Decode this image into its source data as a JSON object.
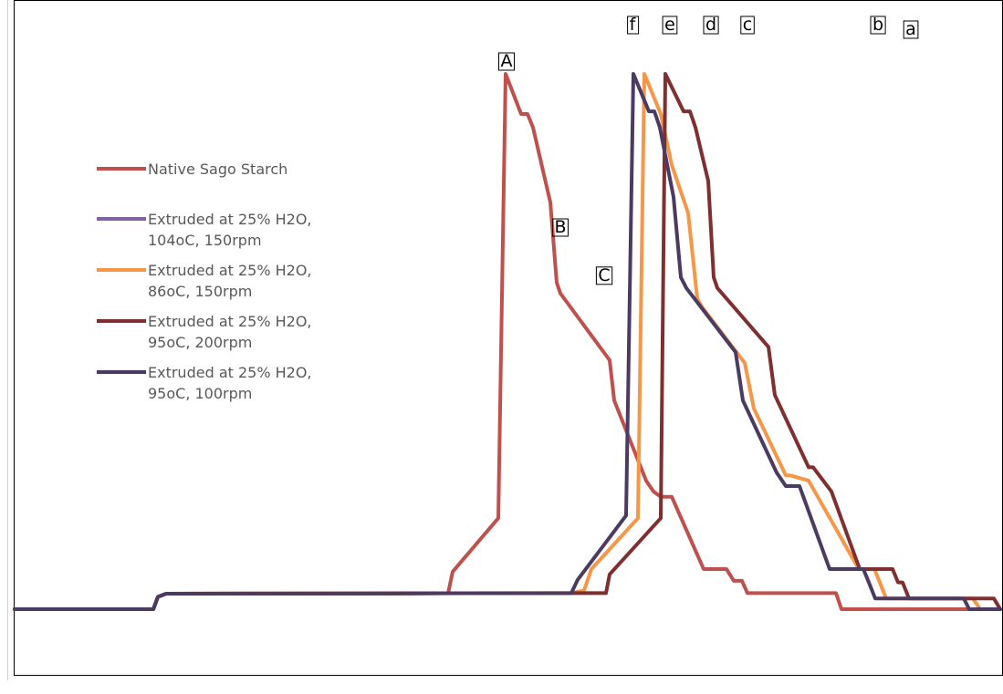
{
  "chart_data": {
    "type": "line",
    "title": "",
    "xlabel": "",
    "ylabel": "",
    "grid": false,
    "legend_position": "left",
    "x_range": [
      0,
      1080
    ],
    "y_range": [
      0,
      100
    ],
    "series": [
      {
        "name": "Native Sago Starch",
        "legend": [
          "Native Sago Starch"
        ],
        "color": "#C0504D",
        "points": [
          [
            0,
            0
          ],
          [
            152,
            0
          ],
          [
            157,
            2.3
          ],
          [
            166,
            2.9
          ],
          [
            420,
            2.9
          ],
          [
            475,
            3
          ],
          [
            480,
            7
          ],
          [
            530,
            17
          ],
          [
            538,
            100
          ],
          [
            555,
            92.5
          ],
          [
            562,
            92.5
          ],
          [
            568,
            90
          ],
          [
            587,
            76
          ],
          [
            594,
            61
          ],
          [
            598,
            59
          ],
          [
            652,
            46.5
          ],
          [
            657,
            39
          ],
          [
            692,
            24
          ],
          [
            700,
            22
          ],
          [
            708,
            21
          ],
          [
            720,
            21
          ],
          [
            755,
            7.5
          ],
          [
            780,
            7.5
          ],
          [
            788,
            5.3
          ],
          [
            797,
            5.3
          ],
          [
            803,
            3
          ],
          [
            900,
            3
          ],
          [
            906,
            0
          ],
          [
            1080,
            0
          ]
        ]
      },
      {
        "name": "Extruded at 25% H2O, 104oC, 150rpm",
        "legend": [
          "Extruded at 25% H2O,",
          "104oC, 150rpm"
        ],
        "color": "#8064A2",
        "points": []
      },
      {
        "name": "Extruded at 25% H2O, 86oC, 150rpm",
        "legend": [
          "Extruded at 25% H2O,",
          "86oC, 150rpm"
        ],
        "color": "#F79646",
        "points": [
          [
            0,
            0
          ],
          [
            152,
            0
          ],
          [
            157,
            2.3
          ],
          [
            166,
            2.9
          ],
          [
            610,
            3
          ],
          [
            624,
            3.5
          ],
          [
            632,
            7.5
          ],
          [
            683,
            17
          ],
          [
            690,
            100
          ],
          [
            708,
            92.5
          ],
          [
            720,
            83
          ],
          [
            738,
            74
          ],
          [
            748,
            58
          ],
          [
            753,
            56.5
          ],
          [
            800,
            46
          ],
          [
            810,
            37.5
          ],
          [
            845,
            25
          ],
          [
            850,
            25
          ],
          [
            870,
            24
          ],
          [
            925,
            7.5
          ],
          [
            942,
            7.5
          ],
          [
            948,
            5
          ],
          [
            955,
            2
          ],
          [
            1050,
            2
          ],
          [
            1058,
            0
          ],
          [
            1080,
            0
          ]
        ]
      },
      {
        "name": "Extruded at 25% H2O, 95oC, 200rpm",
        "legend": [
          "Extruded at 25% H2O,",
          "95oC, 200rpm"
        ],
        "color": "#7F2F2F",
        "points": [
          [
            0,
            0
          ],
          [
            152,
            0
          ],
          [
            157,
            2.3
          ],
          [
            166,
            2.9
          ],
          [
            610,
            3
          ],
          [
            648,
            3
          ],
          [
            652,
            6.5
          ],
          [
            708,
            17
          ],
          [
            713,
            100
          ],
          [
            733,
            93
          ],
          [
            740,
            93
          ],
          [
            746,
            90
          ],
          [
            760,
            80
          ],
          [
            766,
            62
          ],
          [
            770,
            60
          ],
          [
            826,
            49
          ],
          [
            833,
            40
          ],
          [
            870,
            26.5
          ],
          [
            875,
            26.5
          ],
          [
            895,
            22
          ],
          [
            926,
            7.5
          ],
          [
            962,
            7.5
          ],
          [
            968,
            5
          ],
          [
            973,
            5
          ],
          [
            980,
            2
          ],
          [
            1073,
            2
          ],
          [
            1080,
            0
          ]
        ]
      },
      {
        "name": "Extruded at 25% H2O, 95oC, 100rpm",
        "legend": [
          "Extruded at 25% H2O,",
          "95oC, 100rpm"
        ],
        "color": "#4B3A62",
        "points": [
          [
            0,
            0
          ],
          [
            152,
            0
          ],
          [
            157,
            2.3
          ],
          [
            166,
            2.9
          ],
          [
            610,
            3
          ],
          [
            617,
            5.5
          ],
          [
            670,
            17.5
          ],
          [
            678,
            100
          ],
          [
            695,
            93
          ],
          [
            701,
            93
          ],
          [
            707,
            90
          ],
          [
            722,
            77
          ],
          [
            730,
            62
          ],
          [
            736,
            60
          ],
          [
            790,
            48
          ],
          [
            798,
            39
          ],
          [
            835,
            25.5
          ],
          [
            845,
            23
          ],
          [
            860,
            23
          ],
          [
            893,
            7.5
          ],
          [
            930,
            7.5
          ],
          [
            936,
            5
          ],
          [
            943,
            2
          ],
          [
            1040,
            2
          ],
          [
            1046,
            0
          ],
          [
            1080,
            0
          ]
        ]
      }
    ],
    "annotations": [
      {
        "label": "A",
        "x": 539,
        "y": 100,
        "boxed": true
      },
      {
        "label": "B",
        "x": 598,
        "y": 69,
        "boxed": true
      },
      {
        "label": "C",
        "x": 646,
        "y": 60,
        "boxed": true
      },
      {
        "label": "f",
        "x": 677,
        "y": 112,
        "boxed": true
      },
      {
        "label": "e",
        "x": 718,
        "y": 112,
        "boxed": true
      },
      {
        "label": "d",
        "x": 763,
        "y": 112,
        "boxed": true
      },
      {
        "label": "c",
        "x": 803,
        "y": 112,
        "boxed": true
      },
      {
        "label": "b",
        "x": 946,
        "y": 112,
        "boxed": true
      },
      {
        "label": "a",
        "x": 982,
        "y": 111,
        "boxed": true
      }
    ]
  }
}
